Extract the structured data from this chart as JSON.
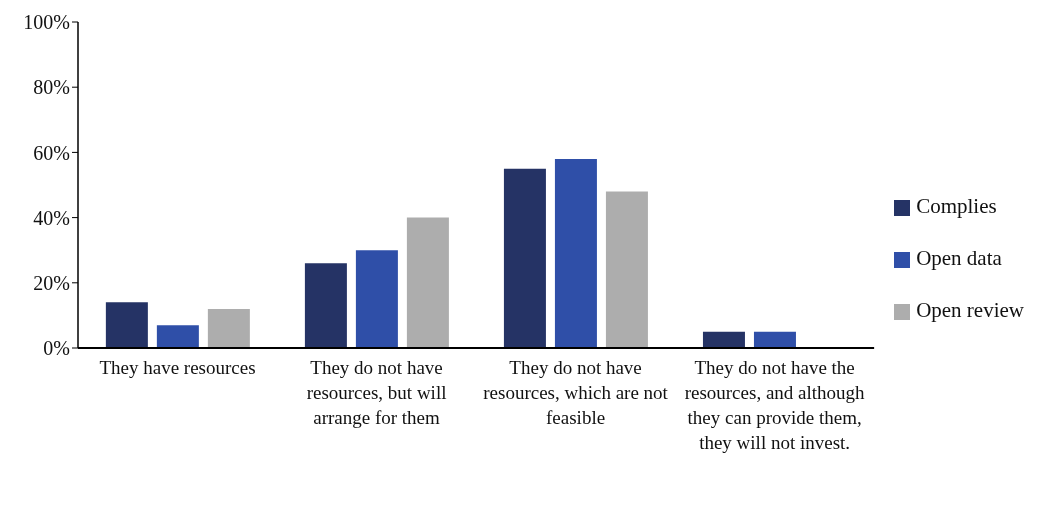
{
  "chart_data": {
    "type": "bar",
    "categories": [
      "They have resources",
      "They do not have resources, but will arrange for them",
      "They do not have resources, which are not feasible",
      "They do not have the resources, and although they can provide them, they will not invest."
    ],
    "series": [
      {
        "name": "Complies",
        "color": "#253365",
        "values": [
          14,
          26,
          55,
          5
        ]
      },
      {
        "name": "Open data",
        "color": "#2f4fa8",
        "values": [
          7,
          30,
          58,
          5
        ]
      },
      {
        "name": "Open review",
        "color": "#adadad",
        "values": [
          12,
          40,
          48,
          0
        ]
      }
    ],
    "ylim": [
      0,
      100
    ],
    "yticks": [
      {
        "value": 0,
        "label": "0%"
      },
      {
        "value": 20,
        "label": "20%"
      },
      {
        "value": 40,
        "label": "40%"
      },
      {
        "value": 60,
        "label": "60%"
      },
      {
        "value": 80,
        "label": "80%"
      },
      {
        "value": 100,
        "label": "100%"
      }
    ],
    "grid": false,
    "legend": "right"
  }
}
